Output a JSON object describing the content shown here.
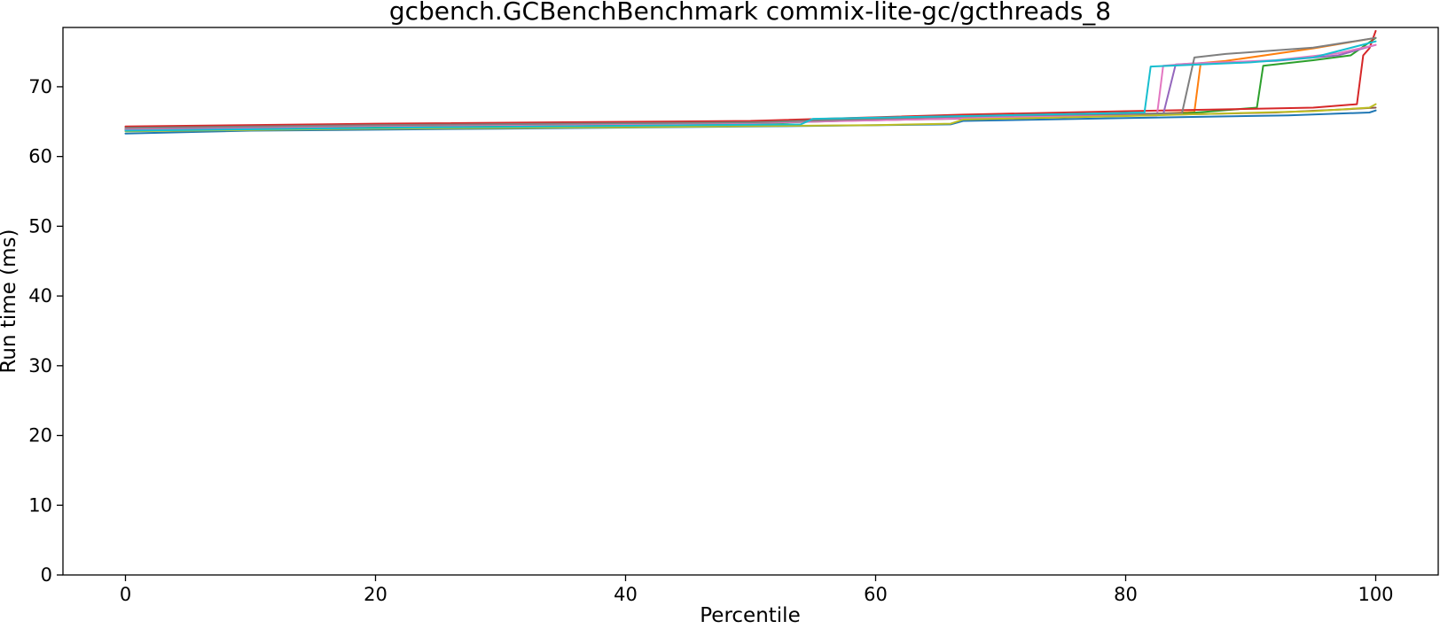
{
  "chart_data": {
    "type": "line",
    "title": "gcbench.GCBenchBenchmark commix-lite-gc/gcthreads_8",
    "xlabel": "Percentile",
    "ylabel": "Run time (ms)",
    "xlim": [
      -5,
      105
    ],
    "ylim": [
      0,
      78.5
    ],
    "xticks": [
      0,
      20,
      40,
      60,
      80,
      100
    ],
    "yticks": [
      0,
      10,
      20,
      30,
      40,
      50,
      60,
      70
    ],
    "grid": false,
    "legend": "none",
    "series": [
      {
        "color": "#1f77b4",
        "x": [
          0,
          10,
          30,
          50,
          66,
          67,
          80,
          93,
          99.5,
          100
        ],
        "y": [
          63.3,
          63.7,
          64.0,
          64.3,
          64.6,
          65.1,
          65.5,
          65.9,
          66.3,
          66.6
        ]
      },
      {
        "color": "#ff7f0e",
        "x": [
          0,
          20,
          50,
          70,
          82,
          85.5,
          86,
          88,
          95,
          100
        ],
        "y": [
          64.0,
          64.5,
          64.8,
          65.8,
          66.1,
          66.4,
          73.4,
          73.7,
          75.5,
          77.0
        ]
      },
      {
        "color": "#2ca02c",
        "x": [
          0,
          20,
          50,
          70,
          85,
          90.5,
          91,
          95,
          98,
          100
        ],
        "y": [
          63.8,
          64.3,
          64.7,
          65.8,
          66.2,
          67.0,
          73.0,
          73.8,
          74.5,
          77.0
        ]
      },
      {
        "color": "#d62728",
        "x": [
          0,
          20,
          50,
          67,
          80,
          95,
          98.5,
          99,
          99.5,
          100
        ],
        "y": [
          64.3,
          64.7,
          65.1,
          66.0,
          66.5,
          67.0,
          67.5,
          74.5,
          75.5,
          78.0
        ]
      },
      {
        "color": "#9467bd",
        "x": [
          0,
          20,
          50,
          70,
          83,
          84,
          86,
          92,
          97,
          100
        ],
        "y": [
          63.9,
          64.4,
          64.8,
          65.8,
          66.0,
          73.2,
          73.4,
          73.7,
          74.5,
          76.0
        ]
      },
      {
        "color": "#8c564b",
        "x": [
          0,
          20,
          50,
          60,
          75,
          92,
          98,
          100
        ],
        "y": [
          64.1,
          64.5,
          64.9,
          65.2,
          65.7,
          66.3,
          66.8,
          67.0
        ]
      },
      {
        "color": "#e377c2",
        "x": [
          0,
          20,
          50,
          70,
          82.5,
          83,
          85,
          92,
          97,
          100
        ],
        "y": [
          64.0,
          64.4,
          64.8,
          65.6,
          65.9,
          73.0,
          73.3,
          73.8,
          74.8,
          76.0
        ]
      },
      {
        "color": "#7f7f7f",
        "x": [
          0,
          20,
          50,
          70,
          84.5,
          85.5,
          88,
          95,
          100
        ],
        "y": [
          64.1,
          64.5,
          64.9,
          65.9,
          66.2,
          74.2,
          74.7,
          75.6,
          77.0
        ]
      },
      {
        "color": "#bcbd22",
        "x": [
          0,
          20,
          40,
          60,
          66,
          67,
          80,
          95,
          99.5,
          100
        ],
        "y": [
          63.6,
          64.0,
          64.2,
          64.5,
          64.7,
          65.3,
          65.8,
          66.5,
          67.0,
          67.5
        ]
      },
      {
        "color": "#17becf",
        "x": [
          0,
          20,
          40,
          54,
          55,
          70,
          81.5,
          82,
          90,
          95,
          100
        ],
        "y": [
          63.7,
          64.1,
          64.4,
          64.6,
          65.4,
          65.9,
          66.3,
          72.9,
          73.5,
          74.2,
          76.5
        ]
      }
    ]
  }
}
